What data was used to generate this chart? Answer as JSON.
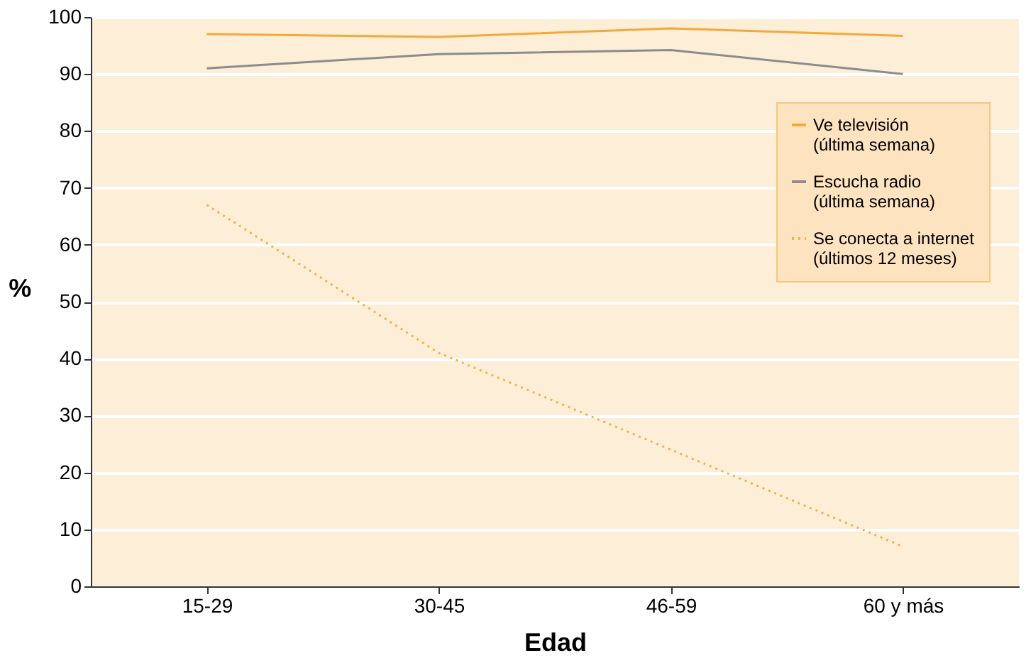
{
  "chart_data": {
    "type": "line",
    "xlabel": "Edad",
    "ylabel": "%",
    "categories": [
      "15-29",
      "30-45",
      "46-59",
      "60 y más"
    ],
    "series": [
      {
        "name": "Ve televisión (última semana)",
        "color": "#f5a83a",
        "line_style": "solid",
        "values": [
          97,
          96.5,
          98,
          96.7
        ]
      },
      {
        "name": "Escucha radio (última semana)",
        "color": "#8c8c8c",
        "line_style": "solid",
        "values": [
          91,
          93.5,
          94.2,
          90
        ]
      },
      {
        "name": "Se conecta a internet (últimos 12 meses)",
        "color": "#f5b04a",
        "line_style": "dotted",
        "values": [
          67,
          41,
          24,
          7
        ]
      }
    ],
    "ylim": [
      0,
      100
    ],
    "yticks": [
      0,
      10,
      20,
      30,
      40,
      50,
      60,
      70,
      80,
      90,
      100
    ],
    "grid": "y",
    "legend": "right",
    "marker": "none"
  }
}
